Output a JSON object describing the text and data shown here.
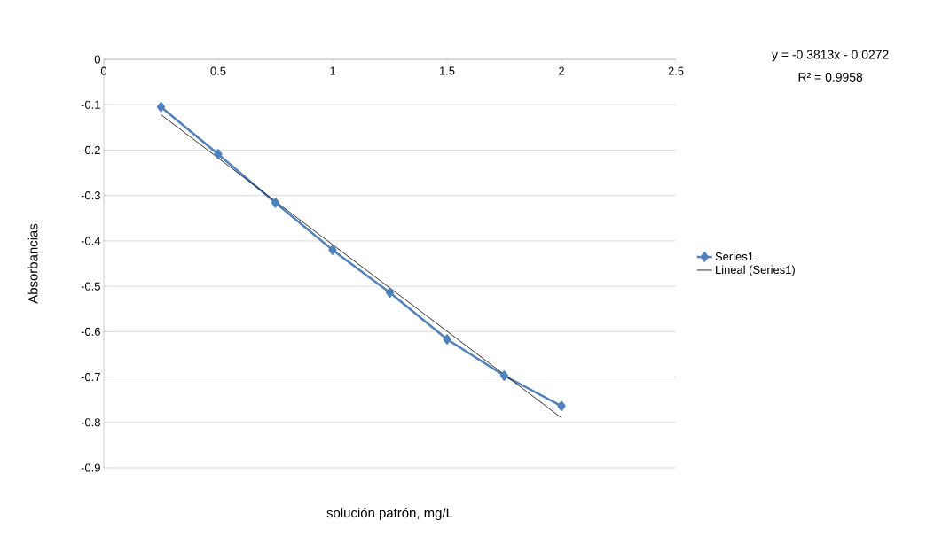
{
  "chart_data": {
    "type": "line",
    "xlabel": "solución patrón, mg/L",
    "ylabel": "Absorbancias",
    "annotations": [
      "y = -0.3813x - 0.0272",
      "R² = 0.9958"
    ],
    "series": [
      {
        "name": "Series1",
        "color": "#4f81bd",
        "marker": "diamond",
        "x": [
          0.25,
          0.5,
          0.75,
          1.0,
          1.25,
          1.5,
          1.75,
          2.0
        ],
        "values": [
          -0.105,
          -0.209,
          -0.316,
          -0.42,
          -0.514,
          -0.617,
          -0.697,
          -0.764
        ]
      },
      {
        "name": "Lineal (Series1)",
        "color": "#000000",
        "marker": "none",
        "x": [
          0.25,
          2.0
        ],
        "values": [
          -0.122,
          -0.79
        ]
      }
    ],
    "xlim": [
      0,
      2.5
    ],
    "ylim": [
      -0.9,
      0
    ],
    "xticks": [
      0,
      0.5,
      1,
      1.5,
      2,
      2.5
    ],
    "yticks": [
      0,
      -0.1,
      -0.2,
      -0.3,
      -0.4,
      -0.5,
      -0.6,
      -0.7,
      -0.8,
      -0.9
    ],
    "grid": "y",
    "legend": "right"
  }
}
